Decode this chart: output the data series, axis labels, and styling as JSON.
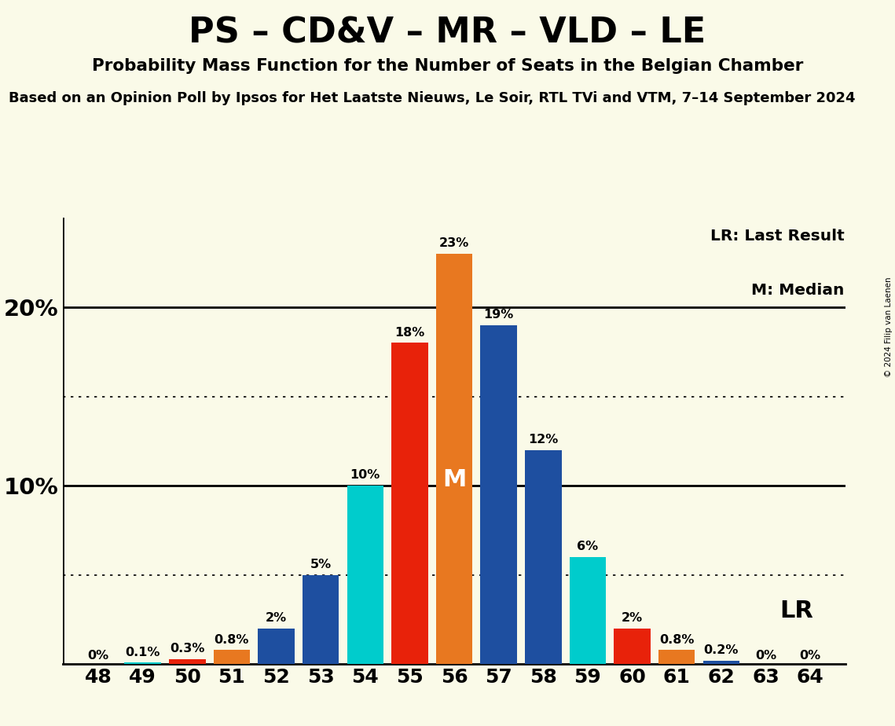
{
  "title": "PS – CD&V – MR – VLD – LE",
  "subtitle1": "Probability Mass Function for the Number of Seats in the Belgian Chamber",
  "subtitle2": "Based on an Opinion Poll by Ipsos for Het Laatste Nieuws, Le Soir, RTL TVi and VTM, 7–14 September 2024",
  "copyright": "© 2024 Filip van Laenen",
  "background_color": "#FAFAE8",
  "seats": [
    48,
    49,
    50,
    51,
    52,
    53,
    54,
    55,
    56,
    57,
    58,
    59,
    60,
    61,
    62,
    63,
    64
  ],
  "values": [
    0.0,
    0.1,
    0.3,
    0.8,
    2.0,
    5.0,
    10.0,
    18.0,
    23.0,
    19.0,
    12.0,
    6.0,
    2.0,
    0.8,
    0.2,
    0.0,
    0.0
  ],
  "value_labels": [
    "0%",
    "0.1%",
    "0.3%",
    "0.8%",
    "2%",
    "5%",
    "10%",
    "18%",
    "23%",
    "19%",
    "12%",
    "6%",
    "2%",
    "0.8%",
    "0.2%",
    "0%",
    "0%"
  ],
  "bar_colors": [
    "#00CCCC",
    "#00CCCC",
    "#E8220A",
    "#E87820",
    "#1E4FA0",
    "#1E4FA0",
    "#00CCCC",
    "#E8220A",
    "#E87820",
    "#1E4FA0",
    "#1E4FA0",
    "#00CCCC",
    "#E8220A",
    "#E87820",
    "#1E4FA0",
    "#1E4FA0",
    "#1E4FA0"
  ],
  "median_seat": 56,
  "median_label": "M",
  "lr_seat": 60,
  "lr_label": "LR",
  "ylim": [
    0,
    25
  ],
  "solid_grid_lines": [
    10,
    20
  ],
  "dotted_grid_lines": [
    5,
    15
  ],
  "legend_lr": "LR: Last Result",
  "legend_m": "M: Median",
  "bar_width": 0.82
}
